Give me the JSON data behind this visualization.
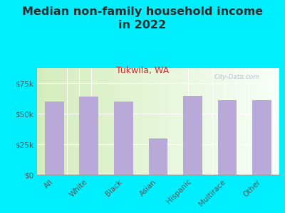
{
  "title": "Median non-family household income\nin 2022",
  "subtitle": "Tukwila, WA",
  "categories": [
    "All",
    "White",
    "Black",
    "Asian",
    "Hispanic",
    "Multirace",
    "Other"
  ],
  "values": [
    60000,
    64000,
    60000,
    30000,
    65000,
    61000,
    61000
  ],
  "bar_color": "#b8a9d9",
  "background_outer": "#00efff",
  "title_color": "#2a2a2a",
  "subtitle_color": "#bb3333",
  "tick_color": "#555555",
  "axis_color": "#999999",
  "ylim": [
    0,
    87500
  ],
  "yticks": [
    0,
    25000,
    50000,
    75000
  ],
  "ytick_labels": [
    "$0",
    "$25k",
    "$50k",
    "$75k"
  ],
  "watermark": "City-Data.com",
  "title_fontsize": 11.5,
  "subtitle_fontsize": 9,
  "tick_fontsize": 7.5,
  "chart_left_color": "#d5edbc",
  "chart_right_color": "#f8fff8"
}
